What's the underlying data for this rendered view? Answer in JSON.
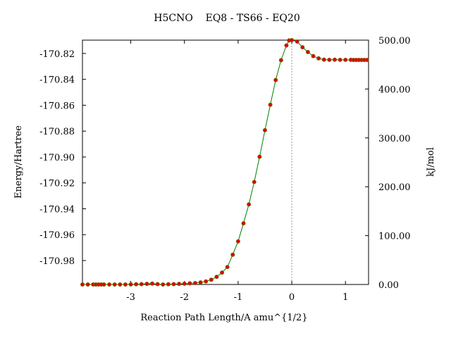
{
  "chart_data": {
    "type": "line",
    "title": "H5CNO    EQ8 - TS66 - EQ20",
    "xlabel": "Reaction Path Length/A amu^{1/2}",
    "ylabel": "Energy/Hartree",
    "y2label": "kJ/mol",
    "xlim": [
      -3.9,
      1.43
    ],
    "ylim": [
      -170.9985,
      -170.8097
    ],
    "y2lim": [
      0.0,
      500.0
    ],
    "x_ticks": [
      -3,
      -2,
      -1,
      0,
      1
    ],
    "x_tick_labels": [
      "-3",
      "-2",
      "-1",
      "0",
      "1"
    ],
    "y_ticks": [
      -170.82,
      -170.84,
      -170.86,
      -170.88,
      -170.9,
      -170.92,
      -170.94,
      -170.96,
      -170.98
    ],
    "y_tick_labels": [
      "-170.82",
      "-170.84",
      "-170.86",
      "-170.88",
      "-170.90",
      "-170.92",
      "-170.94",
      "-170.96",
      "-170.98"
    ],
    "y2_ticks": [
      500,
      400,
      300,
      200,
      100,
      0
    ],
    "y2_tick_labels": [
      "500.00",
      "400.00",
      "300.00",
      "200.00",
      "100.00",
      "0.00"
    ],
    "ts_marker_x": 0.0,
    "grid": false,
    "colors": {
      "line": "#008000",
      "marker": "#e00000",
      "marker_edge": "#806000",
      "ts_line": "#999999"
    },
    "series": [
      {
        "x": [
          -3.9,
          -3.8,
          -3.7,
          -3.65,
          -3.6,
          -3.55,
          -3.5,
          -3.4,
          -3.3,
          -3.2,
          -3.1,
          -3.0,
          -2.9,
          -2.8,
          -2.7,
          -2.6,
          -2.5,
          -2.4,
          -2.3,
          -2.2,
          -2.1,
          -2.0,
          -1.9,
          -1.8,
          -1.7,
          -1.6,
          -1.5,
          -1.4,
          -1.3,
          -1.2,
          -1.1,
          -1.0,
          -0.9,
          -0.8,
          -0.7,
          -0.6,
          -0.5,
          -0.4,
          -0.3,
          -0.2,
          -0.1,
          -0.05,
          0.0,
          0.1,
          0.2,
          0.3,
          0.4,
          0.5,
          0.6,
          0.7,
          0.8,
          0.9,
          1.0,
          1.1,
          1.15,
          1.2,
          1.25,
          1.3,
          1.35,
          1.4
        ],
        "y": [
          -170.9985,
          -170.9985,
          -170.9985,
          -170.9985,
          -170.9985,
          -170.9985,
          -170.9985,
          -170.9985,
          -170.9985,
          -170.9985,
          -170.9985,
          -170.9984,
          -170.9983,
          -170.9982,
          -170.998,
          -170.9978,
          -170.9982,
          -170.9985,
          -170.9983,
          -170.9982,
          -170.998,
          -170.9979,
          -170.9976,
          -170.9974,
          -170.9969,
          -170.9961,
          -170.9948,
          -170.9926,
          -170.9893,
          -170.985,
          -170.9755,
          -170.9652,
          -170.9512,
          -170.9366,
          -170.9193,
          -170.8998,
          -170.8793,
          -170.8596,
          -170.8405,
          -170.8252,
          -170.8138,
          -170.8099,
          -170.8097,
          -170.8108,
          -170.8152,
          -170.8189,
          -170.822,
          -170.8238,
          -170.8248,
          -170.8249,
          -170.8248,
          -170.8249,
          -170.8249,
          -170.8249,
          -170.825,
          -170.825,
          -170.825,
          -170.825,
          -170.825,
          -170.825
        ]
      }
    ]
  }
}
